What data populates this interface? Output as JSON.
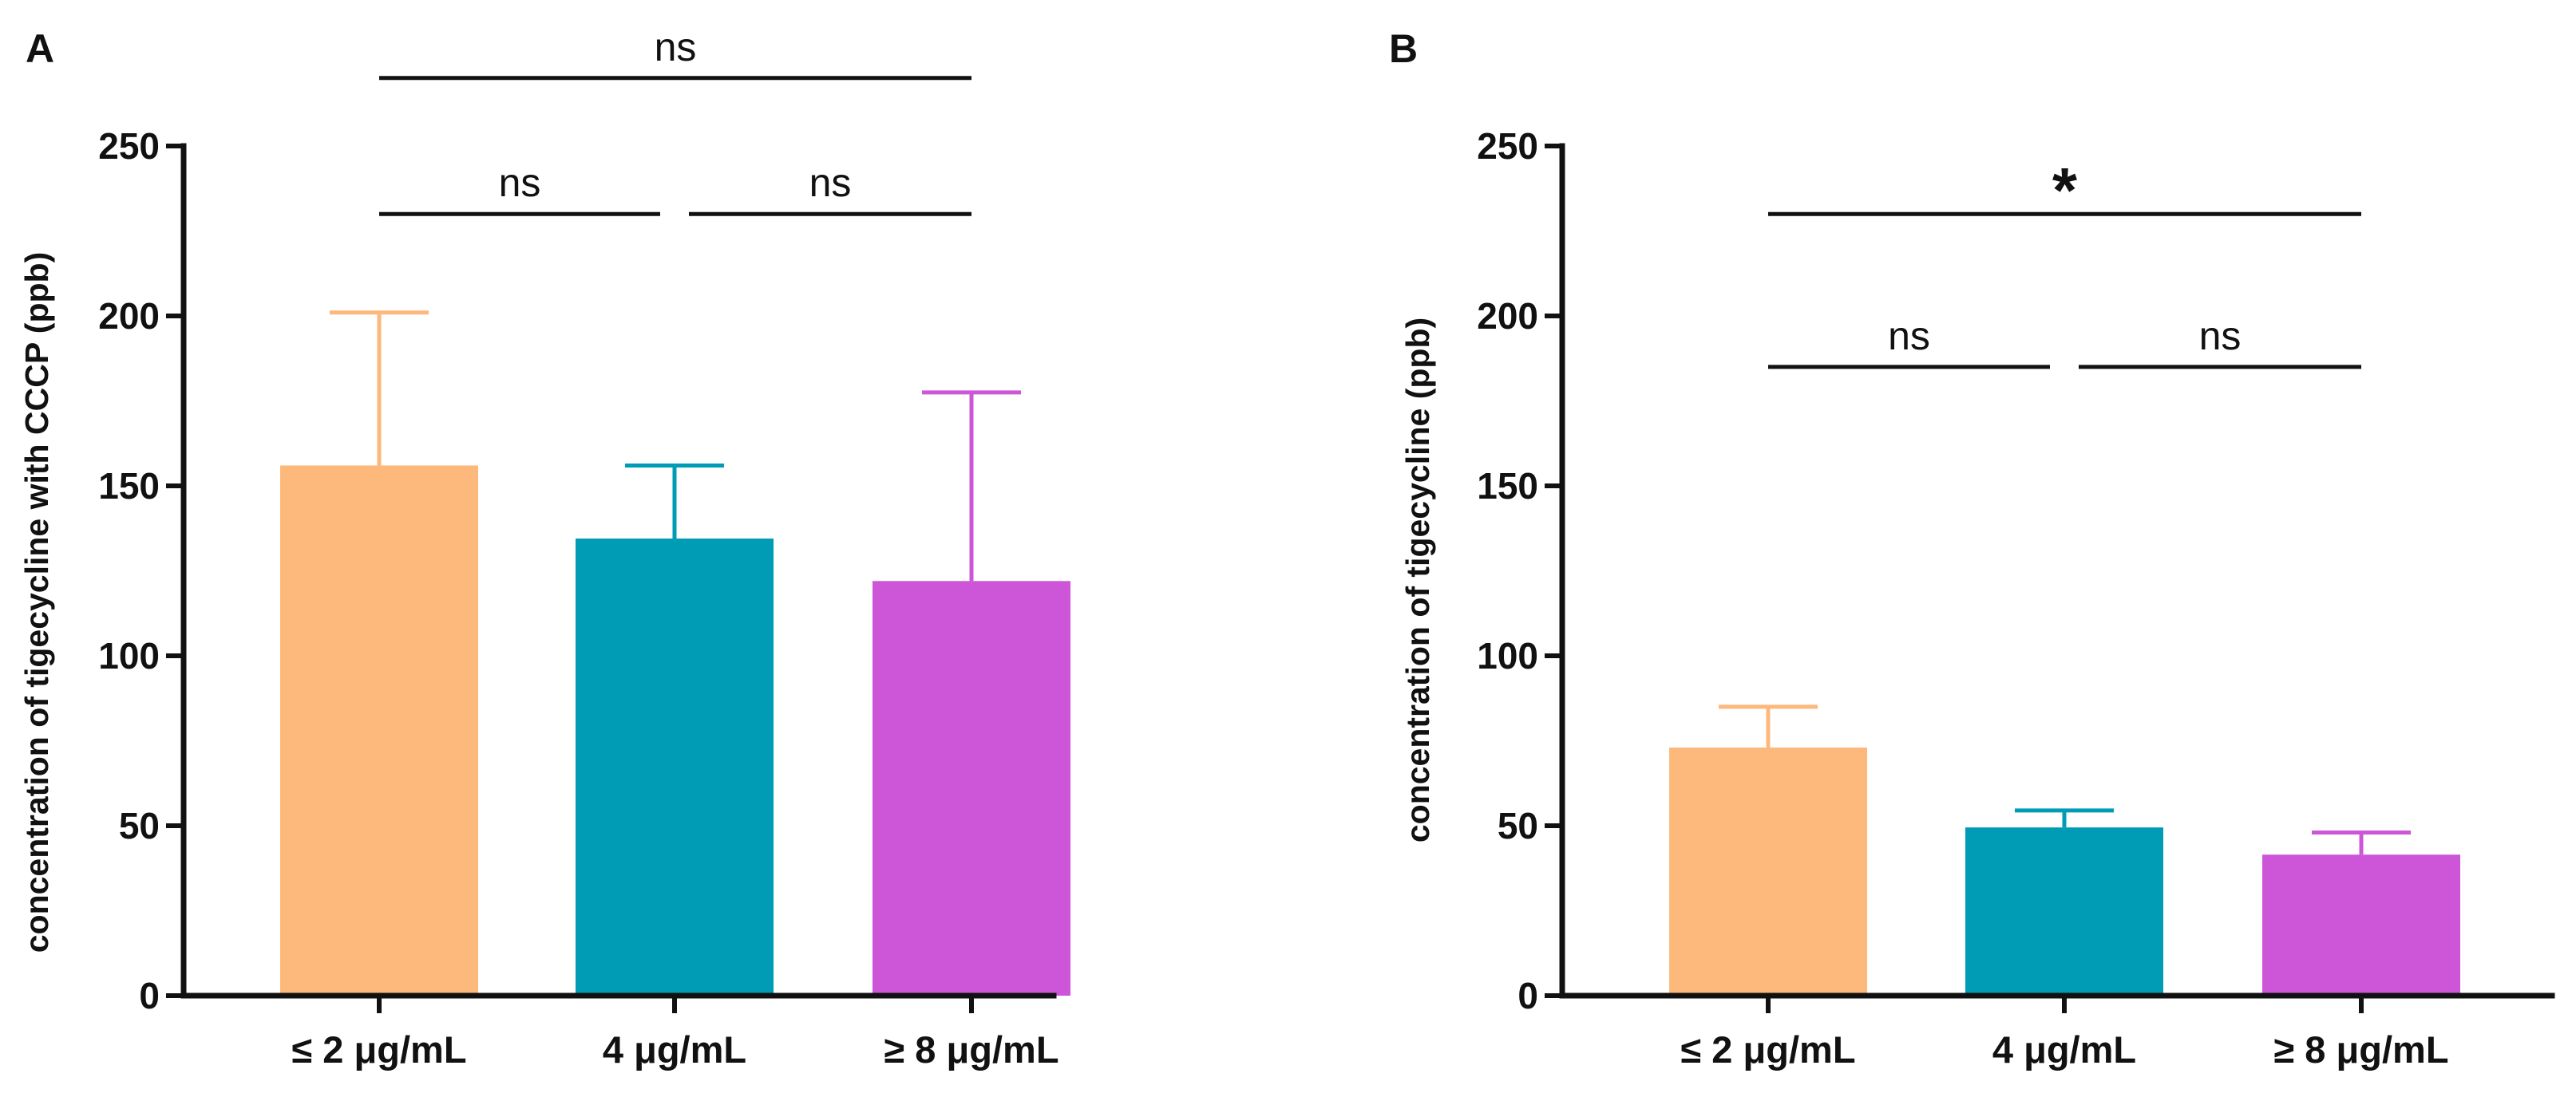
{
  "chart_data": [
    {
      "panel": "A",
      "type": "bar",
      "ylabel": "concentration of tigecycline with CCCP (ppb)",
      "xlabel": "",
      "ylim": [
        0,
        250
      ],
      "yticks": [
        0,
        50,
        100,
        150,
        200,
        250
      ],
      "categories": [
        "≤  2 μg/mL",
        "4 μg/mL",
        "≥ 8 μg/mL"
      ],
      "values": [
        156,
        134.5,
        122
      ],
      "error_upper": [
        45,
        21.5,
        55.5
      ],
      "colors": [
        "#FDB87B",
        "#009BB4",
        "#CC55D8"
      ],
      "significance": [
        {
          "from": 0,
          "to": 1,
          "label": "ns",
          "y": 230,
          "style": "text"
        },
        {
          "from": 1,
          "to": 2,
          "label": "ns",
          "y": 230,
          "style": "text"
        },
        {
          "from": 0,
          "to": 2,
          "label": "ns",
          "y": 270,
          "style": "text"
        }
      ]
    },
    {
      "panel": "B",
      "type": "bar",
      "ylabel": "concentration of tigecycline (ppb)",
      "xlabel": "",
      "ylim": [
        0,
        250
      ],
      "yticks": [
        0,
        50,
        100,
        150,
        200,
        250
      ],
      "categories": [
        "≤  2 μg/mL",
        "4 μg/mL",
        "≥  8 μg/mL"
      ],
      "values": [
        73,
        49.5,
        41.5
      ],
      "error_upper": [
        12,
        5,
        6.5
      ],
      "colors": [
        "#FDB87B",
        "#009BB4",
        "#CC55D8"
      ],
      "significance": [
        {
          "from": 0,
          "to": 1,
          "label": "ns",
          "y": 185,
          "style": "text"
        },
        {
          "from": 1,
          "to": 2,
          "label": "ns",
          "y": 185,
          "style": "text"
        },
        {
          "from": 0,
          "to": 2,
          "label": "*",
          "y": 230,
          "style": "star"
        }
      ]
    }
  ]
}
